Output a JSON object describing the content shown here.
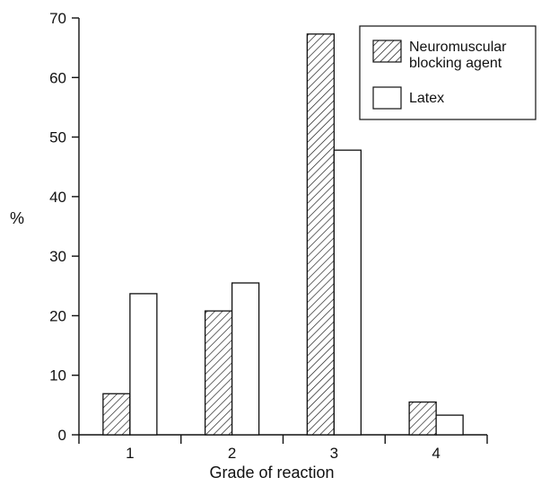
{
  "chart_data": {
    "type": "bar",
    "categories": [
      "1",
      "2",
      "3",
      "4"
    ],
    "series": [
      {
        "name": "Neuromuscular\nblocking agent",
        "values": [
          6.9,
          20.8,
          67.3,
          5.5
        ],
        "fill": "hatched"
      },
      {
        "name": "Latex",
        "values": [
          23.7,
          25.5,
          47.8,
          3.3
        ],
        "fill": "white"
      }
    ],
    "xlabel": "Grade of reaction",
    "ylabel": "%",
    "ylim": [
      0,
      70
    ],
    "yticks": [
      0,
      10,
      20,
      30,
      40,
      50,
      60,
      70
    ],
    "grid": false,
    "legend_position": "top-right"
  },
  "legend": {
    "series1_line1": "Neuromuscular",
    "series1_line2": "blocking agent",
    "series2": "Latex"
  },
  "colors": {
    "ink": "#111111",
    "background": "#ffffff"
  }
}
